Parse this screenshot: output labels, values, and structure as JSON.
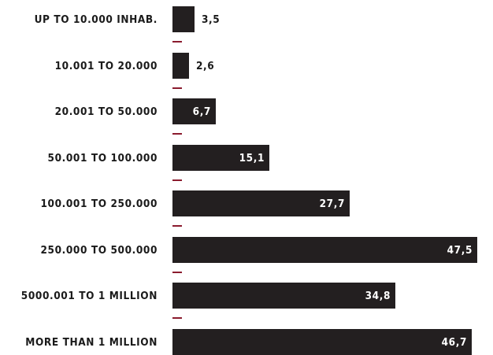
{
  "chart_data": {
    "type": "bar",
    "orientation": "horizontal",
    "categories": [
      "UP TO 10.000 INHAB.",
      "10.001 TO 20.000",
      "20.001 TO 50.000",
      "50.001 TO 100.000",
      "100.001 TO 250.000",
      "250.000 TO 500.000",
      "5000.001 TO 1 MILLION",
      "MORE THAN  1 MILLION"
    ],
    "values": [
      3.5,
      2.6,
      6.7,
      15.1,
      27.7,
      47.5,
      34.8,
      46.7
    ],
    "value_labels": [
      "3,5",
      "2,6",
      "6,7",
      "15,1",
      "27,7",
      "47,5",
      "34,8",
      "46,7"
    ],
    "title": "",
    "xlabel": "",
    "ylabel": "",
    "xlim": [
      0,
      50
    ],
    "grid": false,
    "legend": "none",
    "colors": {
      "bar": "#231f20",
      "separator": "#8b1b2e",
      "label": "#1a1a1a",
      "value_inside": "#ffffff"
    }
  }
}
